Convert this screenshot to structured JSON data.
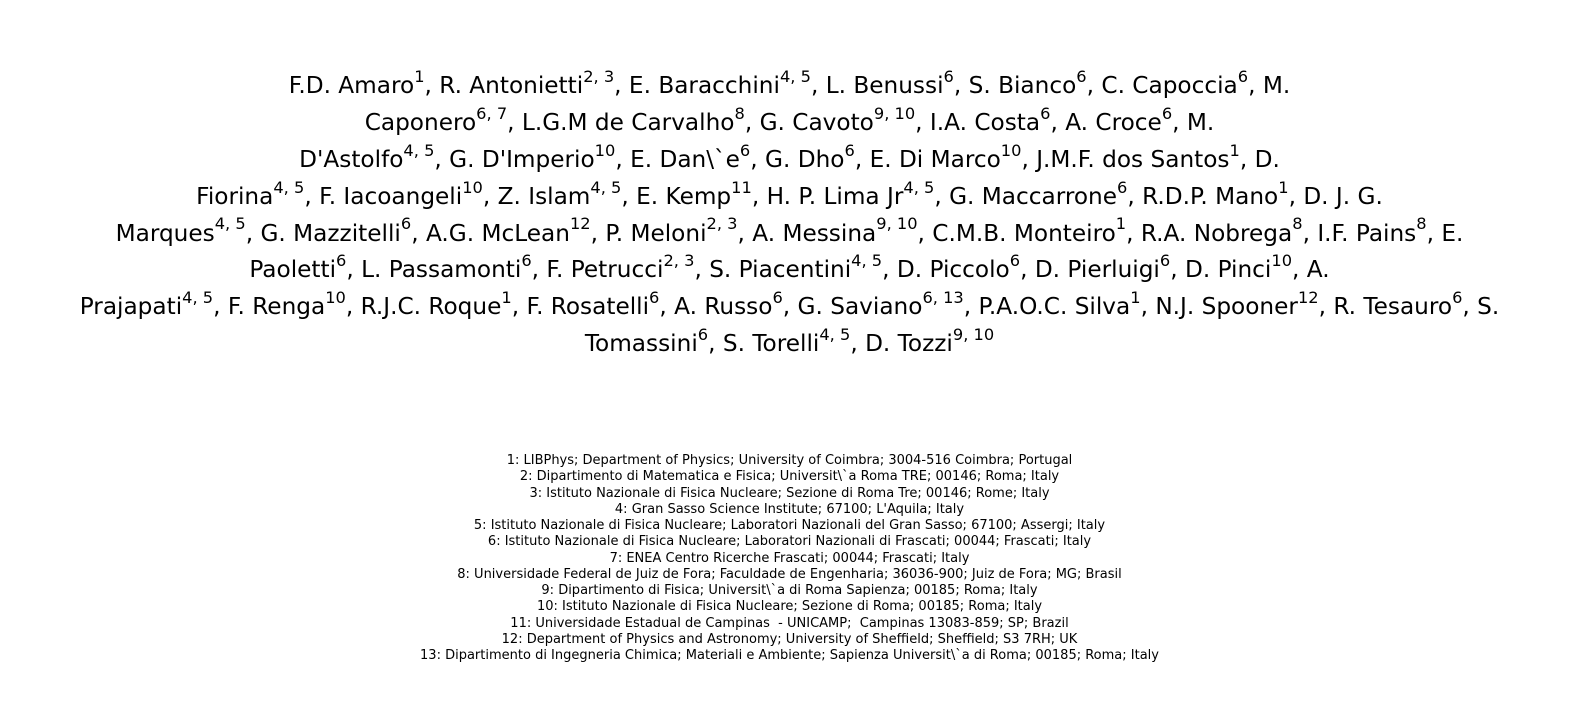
{
  "authors": {
    "lines": [
      [
        {
          "name": "F.D. Amaro",
          "aff": "1",
          "sep": ", "
        },
        {
          "name": "R. Antonietti",
          "aff": "2, 3",
          "sep": ", "
        },
        {
          "name": "E. Baracchini",
          "aff": "4, 5",
          "sep": ", "
        },
        {
          "name": "L. Benussi",
          "aff": "6",
          "sep": ", "
        },
        {
          "name": "S. Bianco",
          "aff": "6",
          "sep": ", "
        },
        {
          "name": "C. Capoccia",
          "aff": "6",
          "sep": ", "
        },
        {
          "name": "M.",
          "aff": "",
          "sep": ""
        }
      ],
      [
        {
          "name": "Caponero",
          "aff": "6, 7",
          "sep": ", "
        },
        {
          "name": "L.G.M de Carvalho",
          "aff": "8",
          "sep": ", "
        },
        {
          "name": "G. Cavoto",
          "aff": "9, 10",
          "sep": ", "
        },
        {
          "name": "I.A. Costa",
          "aff": "6",
          "sep": ", "
        },
        {
          "name": "A. Croce",
          "aff": "6",
          "sep": ", "
        },
        {
          "name": "M.",
          "aff": "",
          "sep": ""
        }
      ],
      [
        {
          "name": "D'Astolfo",
          "aff": "4, 5",
          "sep": ", "
        },
        {
          "name": "G. D'Imperio",
          "aff": "10",
          "sep": ", "
        },
        {
          "name": "E. Dan\\`e",
          "aff": "6",
          "sep": ", "
        },
        {
          "name": "G. Dho",
          "aff": "6",
          "sep": ", "
        },
        {
          "name": "E. Di Marco",
          "aff": "10",
          "sep": ", "
        },
        {
          "name": "J.M.F. dos Santos",
          "aff": "1",
          "sep": ", "
        },
        {
          "name": "D.",
          "aff": "",
          "sep": ""
        }
      ],
      [
        {
          "name": "Fiorina",
          "aff": "4, 5",
          "sep": ", "
        },
        {
          "name": "F. Iacoangeli",
          "aff": "10",
          "sep": ", "
        },
        {
          "name": "Z. Islam",
          "aff": "4, 5",
          "sep": ", "
        },
        {
          "name": "E. Kemp",
          "aff": "11",
          "sep": ", "
        },
        {
          "name": "H. P. Lima Jr",
          "aff": "4, 5",
          "sep": ", "
        },
        {
          "name": "G. Maccarrone",
          "aff": "6",
          "sep": ", "
        },
        {
          "name": "R.D.P. Mano",
          "aff": "1",
          "sep": ", "
        },
        {
          "name": "D. J. G.",
          "aff": "",
          "sep": ""
        }
      ],
      [
        {
          "name": "Marques",
          "aff": "4, 5",
          "sep": ", "
        },
        {
          "name": "G. Mazzitelli",
          "aff": "6",
          "sep": ", "
        },
        {
          "name": "A.G. McLean",
          "aff": "12",
          "sep": ", "
        },
        {
          "name": "P. Meloni",
          "aff": "2, 3",
          "sep": ", "
        },
        {
          "name": "A. Messina",
          "aff": "9, 10",
          "sep": ", "
        },
        {
          "name": "C.M.B. Monteiro",
          "aff": "1",
          "sep": ", "
        },
        {
          "name": "R.A. Nobrega",
          "aff": "8",
          "sep": ", "
        },
        {
          "name": "I.F. Pains",
          "aff": "8",
          "sep": ", "
        },
        {
          "name": "E.",
          "aff": "",
          "sep": ""
        }
      ],
      [
        {
          "name": "Paoletti",
          "aff": "6",
          "sep": ", "
        },
        {
          "name": "L. Passamonti",
          "aff": "6",
          "sep": ", "
        },
        {
          "name": "F. Petrucci",
          "aff": "2, 3",
          "sep": ", "
        },
        {
          "name": "S. Piacentini",
          "aff": "4, 5",
          "sep": ", "
        },
        {
          "name": "D. Piccolo",
          "aff": "6",
          "sep": ", "
        },
        {
          "name": "D. Pierluigi",
          "aff": "6",
          "sep": ", "
        },
        {
          "name": "D. Pinci",
          "aff": "10",
          "sep": ", "
        },
        {
          "name": "A.",
          "aff": "",
          "sep": ""
        }
      ],
      [
        {
          "name": "Prajapati",
          "aff": "4, 5",
          "sep": ", "
        },
        {
          "name": "F. Renga",
          "aff": "10",
          "sep": ", "
        },
        {
          "name": "R.J.C. Roque",
          "aff": "1",
          "sep": ", "
        },
        {
          "name": "F. Rosatelli",
          "aff": "6",
          "sep": ", "
        },
        {
          "name": "A. Russo",
          "aff": "6",
          "sep": ", "
        },
        {
          "name": "G. Saviano",
          "aff": "6, 13",
          "sep": ", "
        },
        {
          "name": "P.A.O.C. Silva",
          "aff": "1",
          "sep": ", "
        },
        {
          "name": "N.J. Spooner",
          "aff": "12",
          "sep": ", "
        },
        {
          "name": "R. Tesauro",
          "aff": "6",
          "sep": ", "
        },
        {
          "name": "S.",
          "aff": "",
          "sep": ""
        }
      ],
      [
        {
          "name": "Tomassini",
          "aff": "6",
          "sep": ", "
        },
        {
          "name": "S. Torelli",
          "aff": "4, 5",
          "sep": ", "
        },
        {
          "name": "D. Tozzi",
          "aff": "9, 10",
          "sep": ""
        }
      ]
    ]
  },
  "affiliations": [
    "1: LIBPhys; Department of Physics; University of Coimbra; 3004-516 Coimbra; Portugal",
    "2: Dipartimento di Matematica e Fisica; Universit\\`a Roma TRE; 00146; Roma; Italy",
    "3: Istituto Nazionale di Fisica Nucleare; Sezione di Roma Tre; 00146; Rome; Italy",
    "4: Gran Sasso Science Institute; 67100; L'Aquila; Italy",
    "5: Istituto Nazionale di Fisica Nucleare; Laboratori Nazionali del Gran Sasso; 67100; Assergi; Italy",
    "6: Istituto Nazionale di Fisica Nucleare; Laboratori Nazionali di Frascati; 00044; Frascati; Italy",
    "7: ENEA Centro Ricerche Frascati; 00044; Frascati; Italy",
    "8: Universidade Federal de Juiz de Fora; Faculdade de Engenharia; 36036-900; Juiz de Fora; MG; Brasil",
    "9: Dipartimento di Fisica; Universit\\`a di Roma Sapienza; 00185; Roma; Italy",
    "10: Istituto Nazionale di Fisica Nucleare; Sezione di Roma; 00185; Roma; Italy",
    "11: Universidade Estadual de Campinas  - UNICAMP;  Campinas 13083-859; SP; Brazil",
    "12: Department of Physics and Astronomy; University of Sheffield; Sheffield; S3 7RH; UK",
    "13: Dipartimento di Ingegneria Chimica; Materiali e Ambiente; Sapienza Universit\\`a di Roma; 00185; Roma; Italy"
  ]
}
